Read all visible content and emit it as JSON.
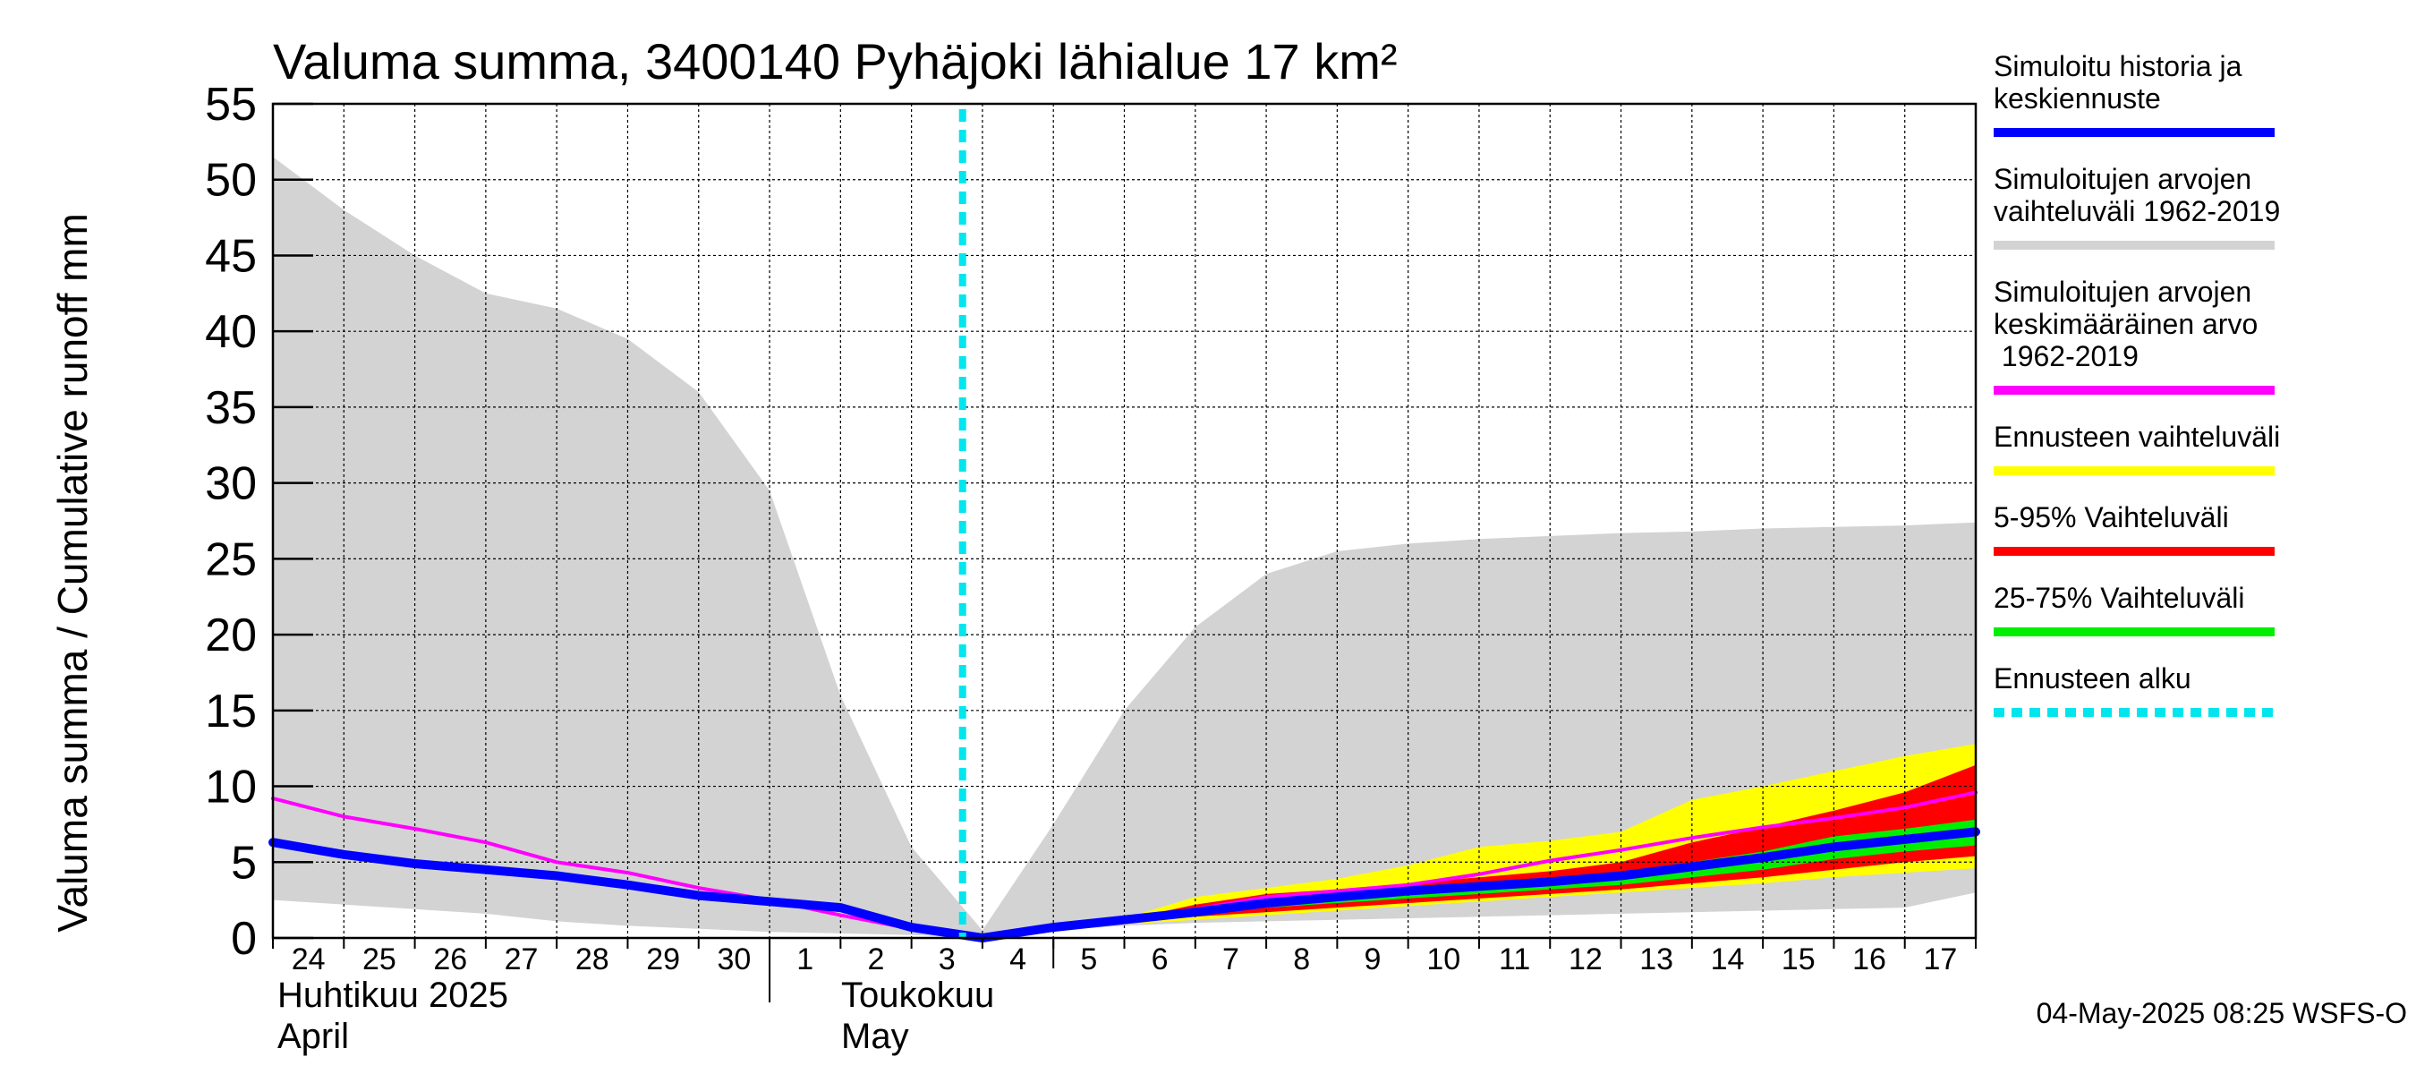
{
  "chart_data": {
    "type": "area",
    "title": "Valuma summa, 3400140 Pyhäjoki lähialue 17 km²",
    "ylabel": "Valuma summa / Cumulative runoff    mm",
    "ylim": [
      0,
      55
    ],
    "yticks": [
      "0",
      "5",
      "10",
      "15",
      "20",
      "25",
      "30",
      "35",
      "40",
      "45",
      "50",
      "55"
    ],
    "grid": true,
    "legend_position": "right",
    "x_ticks": [
      "24",
      "25",
      "26",
      "27",
      "28",
      "29",
      "30",
      "1",
      "2",
      "3",
      "4",
      "5",
      "6",
      "7",
      "8",
      "9",
      "10",
      "11",
      "12",
      "13",
      "14",
      "15",
      "16",
      "17"
    ],
    "x_dates": [
      "2025-04-24",
      "2025-04-25",
      "2025-04-26",
      "2025-04-27",
      "2025-04-28",
      "2025-04-29",
      "2025-04-30",
      "2025-05-01",
      "2025-05-02",
      "2025-05-03",
      "2025-05-04",
      "2025-05-05",
      "2025-05-06",
      "2025-05-07",
      "2025-05-08",
      "2025-05-09",
      "2025-05-10",
      "2025-05-11",
      "2025-05-12",
      "2025-05-13",
      "2025-05-14",
      "2025-05-15",
      "2025-05-16",
      "2025-05-17",
      "2025-05-18"
    ],
    "month_labels": [
      {
        "line1": "Huhtikuu  2025",
        "line2": "April",
        "start_date": "2025-04-24"
      },
      {
        "line1": "Toukokuu",
        "line2": "May",
        "start_date": "2025-05-01"
      }
    ],
    "forecast_start": "2025-05-03",
    "series": [
      {
        "name": "Simuloitujen arvojen vaihteluväli 1962-2019",
        "kind": "band",
        "color": "#d3d3d3",
        "upper": [
          51.5,
          48,
          45,
          42.5,
          41.5,
          39.5,
          36,
          29.5,
          16,
          6,
          0.5,
          7.5,
          15,
          20.5,
          24,
          25.5,
          26,
          26.3,
          26.5,
          26.7,
          26.8,
          27,
          27.1,
          27.2,
          27.4
        ],
        "lower": [
          2.5,
          2.2,
          1.9,
          1.6,
          1.1,
          0.8,
          0.6,
          0.4,
          0.3,
          0.2,
          0.0,
          0.5,
          0.8,
          1.0,
          1.1,
          1.2,
          1.3,
          1.4,
          1.5,
          1.6,
          1.7,
          1.8,
          1.9,
          2.0,
          3.0
        ]
      },
      {
        "name": "Ennusteen vaihteluväli",
        "kind": "band",
        "color": "#ffff00",
        "upper": [
          null,
          null,
          null,
          null,
          null,
          null,
          null,
          null,
          null,
          null,
          0.0,
          0.8,
          1.3,
          2.7,
          3.3,
          3.9,
          4.8,
          6.0,
          6.4,
          7.0,
          9.1,
          10.0,
          11.0,
          12.0,
          12.8
        ],
        "lower": [
          null,
          null,
          null,
          null,
          null,
          null,
          null,
          null,
          null,
          null,
          0.0,
          0.6,
          0.9,
          1.2,
          1.5,
          1.8,
          2.1,
          2.4,
          2.7,
          3.0,
          3.3,
          3.6,
          4.0,
          4.3,
          4.6
        ]
      },
      {
        "name": "5-95% Vaihteluväli",
        "kind": "band",
        "color": "#ff0000",
        "upper": [
          null,
          null,
          null,
          null,
          null,
          null,
          null,
          null,
          null,
          null,
          0.0,
          0.7,
          1.2,
          2.2,
          2.9,
          3.2,
          3.6,
          4.0,
          4.4,
          5.0,
          6.3,
          7.3,
          8.4,
          9.6,
          11.4
        ],
        "lower": [
          null,
          null,
          null,
          null,
          null,
          null,
          null,
          null,
          null,
          null,
          0.0,
          0.6,
          1.0,
          1.4,
          1.7,
          2.0,
          2.3,
          2.6,
          2.9,
          3.2,
          3.6,
          4.0,
          4.5,
          5.0,
          5.4
        ]
      },
      {
        "name": "25-75% Vaihteluväli",
        "kind": "band",
        "color": "#00ee00",
        "upper": [
          null,
          null,
          null,
          null,
          null,
          null,
          null,
          null,
          null,
          null,
          0.0,
          0.6,
          1.1,
          1.8,
          2.4,
          2.8,
          3.2,
          3.5,
          3.8,
          4.2,
          5.0,
          5.7,
          6.7,
          7.2,
          7.8
        ],
        "lower": [
          null,
          null,
          null,
          null,
          null,
          null,
          null,
          null,
          null,
          null,
          0.0,
          0.6,
          1.0,
          1.5,
          2.0,
          2.3,
          2.6,
          2.9,
          3.2,
          3.5,
          4.0,
          4.5,
          5.2,
          5.7,
          6.1
        ]
      },
      {
        "name": "Simuloitujen arvojen keskimääräinen arvo 1962-2019",
        "kind": "line",
        "color": "#ff00ff",
        "width": 4,
        "values": [
          9.2,
          8.0,
          7.2,
          6.3,
          5.0,
          4.3,
          3.3,
          2.5,
          1.5,
          0.6,
          0.0,
          0.7,
          1.2,
          1.9,
          2.7,
          3.1,
          3.5,
          4.2,
          5.1,
          5.8,
          6.6,
          7.3,
          7.9,
          8.6,
          9.6
        ]
      },
      {
        "name": "Simuloitu historia ja keskiennuste",
        "kind": "line",
        "color": "#0000ff",
        "width": 10,
        "values": [
          6.3,
          5.5,
          4.9,
          4.5,
          4.1,
          3.5,
          2.8,
          2.4,
          2.0,
          0.7,
          0.0,
          0.7,
          1.2,
          1.7,
          2.3,
          2.7,
          3.1,
          3.4,
          3.7,
          4.1,
          4.7,
          5.3,
          6.0,
          6.5,
          7.0
        ]
      }
    ],
    "legend": [
      {
        "text": "Simuloitu historia ja\nkeskiennuste",
        "color": "#0000ff",
        "style": "solid"
      },
      {
        "text": "Simuloitujen arvojen\nvaihteluväli 1962-2019",
        "color": "#d3d3d3",
        "style": "solid"
      },
      {
        "text": "Simuloitujen arvojen\nkeskimääräinen arvo\n   1962-2019",
        "color": "#ff00ff",
        "style": "solid"
      },
      {
        "text": "Ennusteen vaihteluväli",
        "color": "#ffff00",
        "style": "solid"
      },
      {
        "text": "5-95% Vaihteluväli",
        "color": "#ff0000",
        "style": "solid"
      },
      {
        "text": "25-75% Vaihteluväli",
        "color": "#00ee00",
        "style": "solid"
      },
      {
        "text": "Ennusteen alku",
        "color": "#00e5ee",
        "style": "dashed"
      }
    ]
  },
  "footer": "04-May-2025 08:25 WSFS-O"
}
